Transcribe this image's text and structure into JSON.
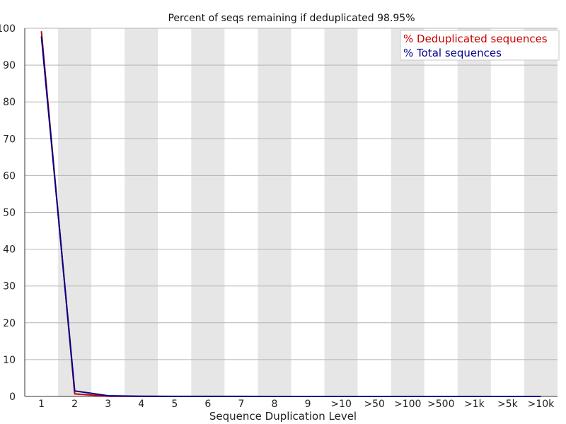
{
  "chart_data": {
    "type": "line",
    "title": "Percent of seqs remaining if deduplicated 98.95%",
    "xlabel": "Sequence Duplication Level",
    "ylabel": "",
    "categories": [
      "1",
      "2",
      "3",
      "4",
      "5",
      "6",
      "7",
      "8",
      "9",
      ">10",
      ">50",
      ">100",
      ">500",
      ">1k",
      ">5k",
      ">10k"
    ],
    "ylim": [
      0,
      100
    ],
    "yticks": [
      0,
      10,
      20,
      30,
      40,
      50,
      60,
      70,
      80,
      90,
      100
    ],
    "series": [
      {
        "name": "% Deduplicated sequences",
        "color": "#cc0000",
        "values": [
          99.2,
          0.7,
          0.05,
          0.02,
          0.01,
          0.01,
          0.0,
          0.0,
          0.0,
          0.0,
          0.0,
          0.0,
          0.0,
          0.0,
          0.0,
          0.0
        ]
      },
      {
        "name": "% Total sequences",
        "color": "#00008b",
        "values": [
          97.8,
          1.5,
          0.2,
          0.05,
          0.03,
          0.02,
          0.02,
          0.01,
          0.01,
          0.01,
          0.0,
          0.0,
          0.0,
          0.0,
          0.0,
          0.0
        ]
      }
    ],
    "grid": true,
    "legend": "top-right",
    "colors": {
      "band": "#e6e6e6",
      "grid": "#b4b4b4",
      "axis": "#333333"
    }
  }
}
